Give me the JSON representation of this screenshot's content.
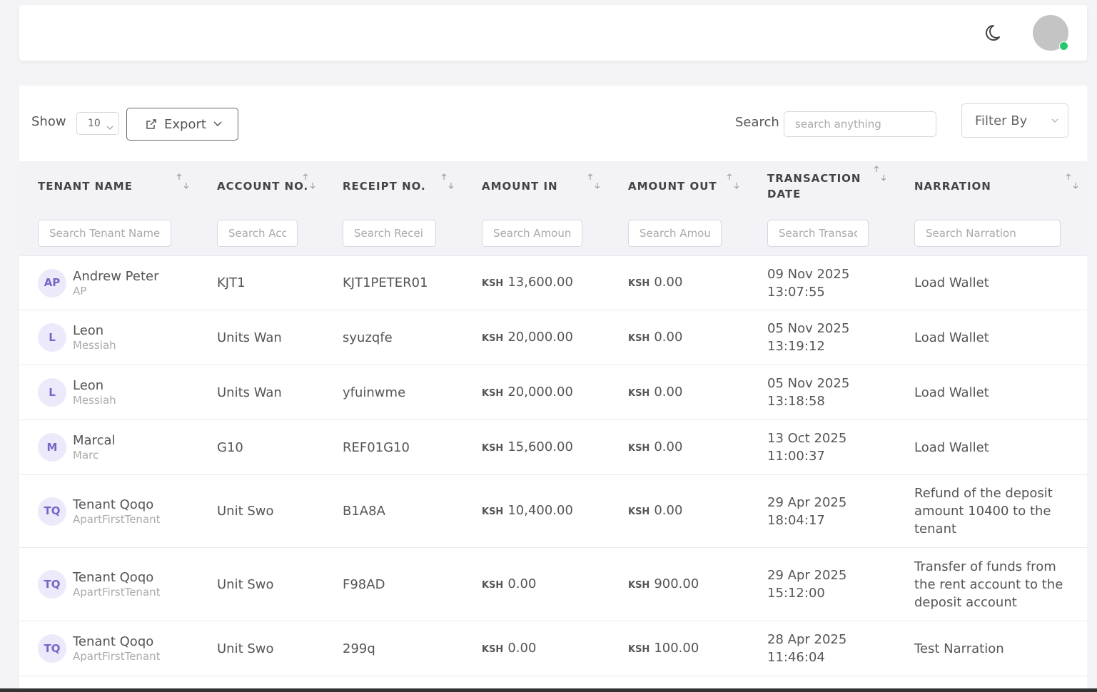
{
  "toolbar": {
    "show_label": "Show",
    "page_size": "10",
    "export": "Export",
    "search_label": "Search",
    "search_placeholder": "search anything",
    "filter": "Filter By"
  },
  "table": {
    "columns": [
      {
        "label": "TENANT NAME",
        "filter_placeholder": "Search Tenant Name"
      },
      {
        "label": "ACCOUNT NO.",
        "filter_placeholder": "Search Acc"
      },
      {
        "label": "RECEIPT NO.",
        "filter_placeholder": "Search Recei"
      },
      {
        "label": "AMOUNT IN",
        "filter_placeholder": "Search Amoun"
      },
      {
        "label": "AMOUNT OUT",
        "filter_placeholder": "Search Amou"
      },
      {
        "label": "TRANSACTION DATE",
        "filter_placeholder": "Search Transac"
      },
      {
        "label": "NARRATION",
        "filter_placeholder": "Search Narration"
      }
    ],
    "rows": [
      {
        "initials": "AP",
        "name": "Andrew Peter",
        "subname": "AP",
        "account": "KJT1",
        "receipt": "KJT1PETER01",
        "currency": "KSH",
        "amount_in": "13,600.00",
        "amount_out": "0.00",
        "date": "09 Nov 2025",
        "time": "13:07:55",
        "narration": "Load Wallet"
      },
      {
        "initials": "L",
        "name": "Leon",
        "subname": "Messiah",
        "account": "Units Wan",
        "receipt": "syuzqfe",
        "currency": "KSH",
        "amount_in": "20,000.00",
        "amount_out": "0.00",
        "date": "05 Nov 2025",
        "time": "13:19:12",
        "narration": "Load Wallet"
      },
      {
        "initials": "L",
        "name": "Leon",
        "subname": "Messiah",
        "account": "Units Wan",
        "receipt": "yfuinwme",
        "currency": "KSH",
        "amount_in": "20,000.00",
        "amount_out": "0.00",
        "date": "05 Nov 2025",
        "time": "13:18:58",
        "narration": "Load Wallet"
      },
      {
        "initials": "M",
        "name": "Marcal",
        "subname": "Marc",
        "account": "G10",
        "receipt": "REF01G10",
        "currency": "KSH",
        "amount_in": "15,600.00",
        "amount_out": "0.00",
        "date": "13 Oct 2025",
        "time": "11:00:37",
        "narration": "Load Wallet"
      },
      {
        "initials": "TQ",
        "name": "Tenant Qoqo",
        "subname": "ApartFirstTenant",
        "account": "Unit Swo",
        "receipt": "B1A8A",
        "currency": "KSH",
        "amount_in": "10,400.00",
        "amount_out": "0.00",
        "date": "29 Apr 2025",
        "time": "18:04:17",
        "narration": "Refund of the deposit amount 10400 to the tenant"
      },
      {
        "initials": "TQ",
        "name": "Tenant Qoqo",
        "subname": "ApartFirstTenant",
        "account": "Unit Swo",
        "receipt": "F98AD",
        "currency": "KSH",
        "amount_in": "0.00",
        "amount_out": "900.00",
        "date": "29 Apr 2025",
        "time": "15:12:00",
        "narration": "Transfer of funds from the rent account to the deposit account"
      },
      {
        "initials": "TQ",
        "name": "Tenant Qoqo",
        "subname": "ApartFirstTenant",
        "account": "Unit Swo",
        "receipt": "299q",
        "currency": "KSH",
        "amount_in": "0.00",
        "amount_out": "100.00",
        "date": "28 Apr 2025",
        "time": "11:46:04",
        "narration": "Test Narration"
      }
    ]
  }
}
